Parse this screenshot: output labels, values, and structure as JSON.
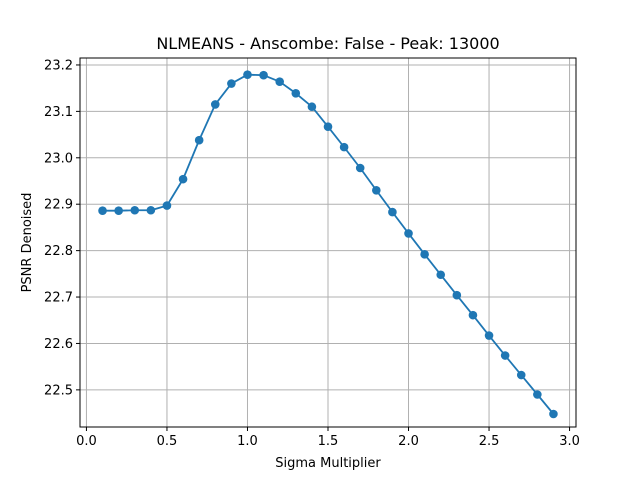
{
  "chart_data": {
    "type": "line",
    "title": "NLMEANS - Anscombe: False - Peak: 13000",
    "xlabel": "Sigma Multiplier",
    "ylabel": "PSNR Denoised",
    "xlim": [
      -0.04,
      3.04
    ],
    "ylim": [
      22.42,
      23.215
    ],
    "grid": true,
    "x_ticks": [
      0.0,
      0.5,
      1.0,
      1.5,
      2.0,
      2.5,
      3.0
    ],
    "x_tick_labels": [
      "0.0",
      "0.5",
      "1.0",
      "1.5",
      "2.0",
      "2.5",
      "3.0"
    ],
    "y_ticks": [
      22.5,
      22.6,
      22.7,
      22.8,
      22.9,
      23.0,
      23.1,
      23.2
    ],
    "y_tick_labels": [
      "22.5",
      "22.6",
      "22.7",
      "22.8",
      "22.9",
      "23.0",
      "23.1",
      "23.2"
    ],
    "colors": {
      "series": "#1f77b4",
      "grid": "#b0b0b0"
    },
    "series": [
      {
        "marker": "o",
        "x": [
          0.1,
          0.2,
          0.3,
          0.4,
          0.5,
          0.6,
          0.7,
          0.8,
          0.9,
          1.0,
          1.1,
          1.2,
          1.3,
          1.4,
          1.5,
          1.6,
          1.7,
          1.8,
          1.9,
          2.0,
          2.1,
          2.2,
          2.3,
          2.4,
          2.5,
          2.6,
          2.7,
          2.8,
          2.9
        ],
        "y": [
          22.886,
          22.886,
          22.887,
          22.887,
          22.897,
          22.954,
          23.038,
          23.115,
          23.16,
          23.179,
          23.178,
          23.164,
          23.139,
          23.11,
          23.067,
          23.023,
          22.978,
          22.93,
          22.883,
          22.837,
          22.792,
          22.748,
          22.704,
          22.661,
          22.617,
          22.574,
          22.532,
          22.49,
          22.448
        ]
      }
    ]
  }
}
